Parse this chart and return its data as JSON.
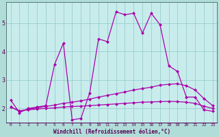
{
  "background_color": "#b0ddd8",
  "plot_bg_color": "#c8ecec",
  "grid_color": "#99cccc",
  "line_color": "#aa00aa",
  "xlabel": "Windchill (Refroidissement éolien,°C)",
  "xlim": [
    -0.5,
    23.5
  ],
  "ylim": [
    1.5,
    5.75
  ],
  "yticks": [
    2,
    3,
    4,
    5
  ],
  "xticks": [
    0,
    1,
    2,
    3,
    4,
    5,
    6,
    7,
    8,
    9,
    10,
    11,
    12,
    13,
    14,
    15,
    16,
    17,
    18,
    19,
    20,
    21,
    22,
    23
  ],
  "series1_x": [
    0,
    1,
    2,
    3,
    4,
    5,
    6,
    7,
    8,
    9,
    10,
    11,
    12,
    13,
    14,
    15,
    16,
    17,
    18,
    19,
    20,
    21,
    22,
    23
  ],
  "series1_y": [
    2.3,
    1.85,
    2.0,
    2.05,
    2.1,
    3.55,
    4.3,
    1.6,
    1.65,
    2.55,
    4.45,
    4.35,
    5.4,
    5.3,
    5.35,
    4.65,
    5.35,
    4.95,
    3.5,
    3.3,
    2.4,
    2.4,
    1.95,
    1.9
  ],
  "series2_x": [
    0,
    1,
    2,
    3,
    4,
    5,
    6,
    7,
    8,
    9,
    10,
    11,
    12,
    13,
    14,
    15,
    16,
    17,
    18,
    19,
    20,
    21,
    22,
    23
  ],
  "series2_y": [
    2.05,
    1.9,
    1.97,
    2.02,
    2.07,
    2.12,
    2.18,
    2.22,
    2.27,
    2.33,
    2.4,
    2.46,
    2.52,
    2.58,
    2.65,
    2.7,
    2.75,
    2.82,
    2.85,
    2.87,
    2.8,
    2.65,
    2.35,
    2.1
  ],
  "series3_x": [
    0,
    1,
    2,
    3,
    4,
    5,
    6,
    7,
    8,
    9,
    10,
    11,
    12,
    13,
    14,
    15,
    16,
    17,
    18,
    19,
    20,
    21,
    22,
    23
  ],
  "series3_y": [
    2.05,
    1.92,
    1.95,
    1.98,
    2.0,
    2.02,
    2.05,
    2.07,
    2.08,
    2.1,
    2.12,
    2.14,
    2.16,
    2.18,
    2.2,
    2.22,
    2.23,
    2.24,
    2.25,
    2.24,
    2.22,
    2.18,
    2.08,
    2.0
  ]
}
